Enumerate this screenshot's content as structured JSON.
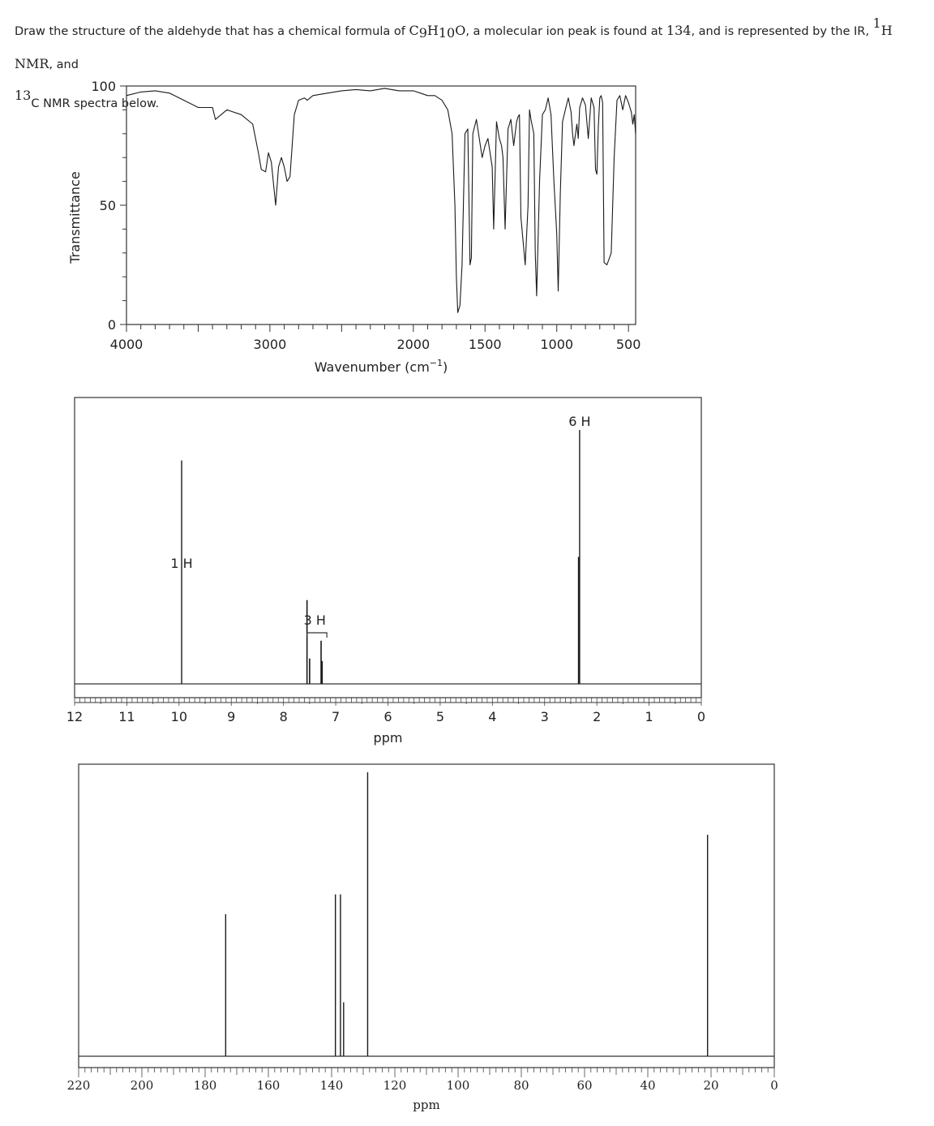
{
  "question": {
    "p1": "Draw the structure of the aldehyde that has a chemical formula of ",
    "f_C": "C",
    "f_9": "9",
    "f_H": "H",
    "f_10": "10",
    "f_O": "O",
    "p2": ", a molecular ion peak is found at ",
    "mz": "134",
    "p3": ", and is represented by the IR, ",
    "sup1": "1",
    "h_label": "H NMR",
    "p4": ", and ",
    "sup13": "13",
    "p5": "C NMR spectra below."
  },
  "chart_data": [
    {
      "type": "line",
      "name": "ir-spectrum",
      "xlabel": "Wavenumber (cm",
      "xlabel_sup": "−1",
      "xlabel_close": ")",
      "ylabel": "Transmittance",
      "xlim": [
        4000,
        450
      ],
      "ylim": [
        0,
        100
      ],
      "xticks": [
        4000,
        3000,
        2000,
        1500,
        1000,
        500
      ],
      "yticks": [
        0,
        50,
        100
      ],
      "x": [
        4000,
        3900,
        3800,
        3700,
        3600,
        3500,
        3400,
        3380,
        3300,
        3200,
        3120,
        3080,
        3060,
        3030,
        3010,
        2990,
        2960,
        2940,
        2920,
        2900,
        2880,
        2860,
        2830,
        2800,
        2760,
        2740,
        2720,
        2700,
        2600,
        2500,
        2400,
        2300,
        2200,
        2100,
        2000,
        1950,
        1900,
        1850,
        1800,
        1760,
        1730,
        1710,
        1700,
        1690,
        1675,
        1660,
        1640,
        1620,
        1605,
        1595,
        1585,
        1560,
        1520,
        1500,
        1480,
        1460,
        1450,
        1440,
        1420,
        1400,
        1385,
        1375,
        1360,
        1340,
        1320,
        1300,
        1280,
        1270,
        1260,
        1250,
        1220,
        1200,
        1190,
        1180,
        1160,
        1150,
        1140,
        1120,
        1100,
        1080,
        1060,
        1040,
        1020,
        1000,
        990,
        975,
        960,
        940,
        920,
        900,
        890,
        880,
        860,
        850,
        840,
        820,
        800,
        780,
        760,
        740,
        730,
        720,
        710,
        700,
        690,
        680,
        670,
        650,
        620,
        600,
        580,
        560,
        540,
        520,
        500,
        480,
        470,
        460,
        450
      ],
      "y": [
        96,
        97.5,
        98,
        97,
        94,
        91,
        91,
        86,
        90,
        88,
        84,
        72,
        65,
        64,
        72,
        68,
        50,
        66,
        70,
        66,
        60,
        62,
        88,
        94,
        95,
        94,
        95,
        96,
        97,
        98,
        98.5,
        98,
        99,
        98,
        98,
        97,
        96,
        96,
        94,
        90,
        80,
        50,
        20,
        5,
        8,
        25,
        80,
        82,
        25,
        28,
        80,
        86,
        70,
        75,
        78,
        70,
        66,
        40,
        85,
        78,
        75,
        70,
        40,
        82,
        86,
        75,
        85,
        87,
        88,
        45,
        25,
        50,
        90,
        86,
        80,
        30,
        12,
        60,
        88,
        90,
        95,
        88,
        60,
        38,
        14,
        55,
        85,
        90,
        95,
        89,
        80,
        75,
        84,
        78,
        91,
        95,
        92,
        78,
        95,
        91,
        65,
        63,
        83,
        95,
        96,
        93,
        26,
        25,
        30,
        70,
        94,
        96,
        90,
        96,
        93,
        89,
        84,
        88,
        80
      ],
      "color": "#1a1a1a"
    },
    {
      "type": "line",
      "name": "h1-nmr-spectrum",
      "xlabel": "ppm",
      "xlim": [
        12,
        0
      ],
      "xticks": [
        12,
        11,
        10,
        9,
        8,
        7,
        6,
        5,
        4,
        3,
        2,
        1,
        0
      ],
      "peaks": [
        {
          "ppm": 9.95,
          "height": 0.88
        },
        {
          "ppm": 7.55,
          "height": 0.33
        },
        {
          "ppm": 7.5,
          "height": 0.1
        },
        {
          "ppm": 7.28,
          "height": 0.17
        },
        {
          "ppm": 7.26,
          "height": 0.09
        },
        {
          "ppm": 2.33,
          "height": 1.0
        },
        {
          "ppm": 2.35,
          "height": 0.5
        }
      ],
      "annotations": [
        {
          "text": "1 H",
          "ppm": 9.95
        },
        {
          "text": "3 H",
          "ppm": 7.4
        },
        {
          "text": "6 H",
          "ppm": 2.33
        }
      ],
      "color": "#1a1a1a"
    },
    {
      "type": "line",
      "name": "c13-nmr-spectrum",
      "xlabel": "ppm",
      "xlim": [
        220,
        0
      ],
      "xticks": [
        220,
        200,
        180,
        160,
        140,
        120,
        100,
        80,
        60,
        40,
        20,
        0
      ],
      "peaks": [
        {
          "ppm": 173.5,
          "height": 0.5
        },
        {
          "ppm": 138.8,
          "height": 0.57
        },
        {
          "ppm": 137.2,
          "height": 0.57
        },
        {
          "ppm": 136.2,
          "height": 0.19
        },
        {
          "ppm": 128.6,
          "height": 1.0
        },
        {
          "ppm": 21.1,
          "height": 0.78
        }
      ],
      "color": "#1a1a1a"
    }
  ]
}
